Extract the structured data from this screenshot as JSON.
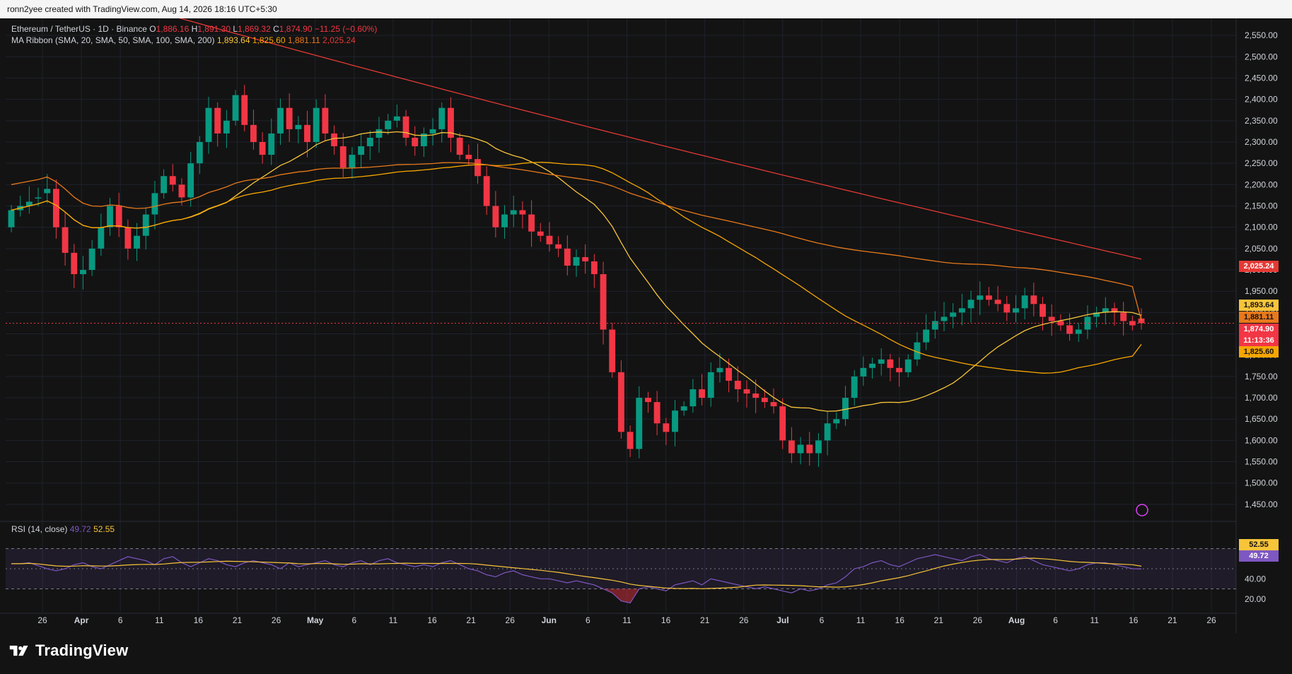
{
  "header": {
    "credit": "ronn2yee created with TradingView.com, Aug 14, 2026 18:16 UTC+5:30"
  },
  "legend": {
    "symbol": "Ethereum / TetherUS · 1D · Binance",
    "open_label": "O",
    "open": "1,886.16",
    "high_label": "H",
    "high": "1,891.30",
    "low_label": "L",
    "low": "1,869.32",
    "close_label": "C",
    "close": "1,874.90",
    "change": "−11.25 (−0.60%)",
    "ma_label": "MA Ribbon (SMA, 20, SMA, 50, SMA, 100, SMA, 200)",
    "ma20": "1,893.64",
    "ma50": "1,825.60",
    "ma100": "1,881.11",
    "ma200": "2,025.24",
    "rsi_label": "RSI (14, close)",
    "rsi_value": "49.72",
    "rsi_ma": "52.55"
  },
  "badges": {
    "ma200": "2,025.24",
    "ma20": "1,893.64",
    "ma100": "1,881.11",
    "last": "1,874.90",
    "countdown": "11:13:36",
    "ma50": "1,825.60",
    "rsi_ma": "52.55",
    "rsi": "49.72"
  },
  "colors": {
    "up": "#089981",
    "down": "#f23645",
    "ma20": "#f7c43a",
    "ma50": "#f7a600",
    "ma100": "#e8791b",
    "ma200": "#e53935",
    "rsi": "#7e57c2",
    "rsi_ma": "#f7c43a"
  },
  "brand": {
    "name": "TradingView",
    "logo": "tradingview-logo"
  },
  "chart_data": {
    "type": "candlestick",
    "title": "Ethereum / TetherUS · 1D · Binance",
    "ylim": [
      1420,
      2590
    ],
    "y_ticks": [
      "2,550.00",
      "2,500.00",
      "2,450.00",
      "2,400.00",
      "2,350.00",
      "2,300.00",
      "2,250.00",
      "2,200.00",
      "2,150.00",
      "2,100.00",
      "2,050.00",
      "2,000.00",
      "1,950.00",
      "1,900.00",
      "1,850.00",
      "1,800.00",
      "1,750.00",
      "1,700.00",
      "1,650.00",
      "1,600.00",
      "1,550.00",
      "1,500.00",
      "1,450.00"
    ],
    "x_ticks": [
      "26",
      "Apr",
      "6",
      "11",
      "16",
      "21",
      "26",
      "May",
      "6",
      "11",
      "16",
      "21",
      "26",
      "Jun",
      "6",
      "11",
      "16",
      "21",
      "26",
      "Jul",
      "6",
      "11",
      "16",
      "21",
      "26",
      "Aug",
      "6",
      "11",
      "16",
      "21",
      "26"
    ],
    "closes": [
      2140,
      2150,
      2160,
      2170,
      2190,
      2100,
      2040,
      1990,
      2000,
      2050,
      2100,
      2150,
      2100,
      2050,
      2080,
      2130,
      2180,
      2220,
      2200,
      2170,
      2250,
      2300,
      2380,
      2320,
      2350,
      2410,
      2340,
      2300,
      2270,
      2320,
      2380,
      2330,
      2340,
      2300,
      2380,
      2320,
      2290,
      2240,
      2270,
      2290,
      2310,
      2330,
      2350,
      2360,
      2310,
      2290,
      2320,
      2330,
      2380,
      2310,
      2270,
      2260,
      2220,
      2150,
      2100,
      2130,
      2140,
      2130,
      2090,
      2080,
      2060,
      2050,
      2010,
      2030,
      2020,
      1990,
      1860,
      1760,
      1620,
      1580,
      1700,
      1690,
      1640,
      1620,
      1670,
      1680,
      1720,
      1700,
      1760,
      1770,
      1740,
      1720,
      1710,
      1700,
      1690,
      1680,
      1600,
      1570,
      1590,
      1570,
      1600,
      1640,
      1650,
      1700,
      1750,
      1770,
      1780,
      1790,
      1770,
      1760,
      1790,
      1830,
      1860,
      1880,
      1890,
      1900,
      1910,
      1930,
      1940,
      1930,
      1920,
      1900,
      1910,
      1940,
      1920,
      1890,
      1880,
      1870,
      1850,
      1860,
      1890,
      1900,
      1910,
      1900,
      1880,
      1870,
      1875
    ],
    "opens": [
      2100,
      2140,
      2150,
      2170,
      2180,
      2190,
      2100,
      2040,
      1990,
      2000,
      2050,
      2100,
      2150,
      2100,
      2050,
      2080,
      2130,
      2180,
      2220,
      2200,
      2170,
      2250,
      2300,
      2380,
      2320,
      2350,
      2410,
      2340,
      2300,
      2270,
      2320,
      2380,
      2330,
      2340,
      2300,
      2380,
      2320,
      2290,
      2240,
      2270,
      2290,
      2310,
      2330,
      2350,
      2360,
      2310,
      2290,
      2320,
      2330,
      2380,
      2310,
      2270,
      2260,
      2220,
      2150,
      2100,
      2130,
      2140,
      2130,
      2090,
      2080,
      2060,
      2050,
      2010,
      2030,
      2020,
      1990,
      1860,
      1760,
      1620,
      1580,
      1700,
      1690,
      1640,
      1620,
      1670,
      1680,
      1720,
      1700,
      1760,
      1770,
      1740,
      1720,
      1710,
      1700,
      1690,
      1680,
      1600,
      1570,
      1590,
      1570,
      1600,
      1640,
      1650,
      1700,
      1750,
      1770,
      1780,
      1790,
      1770,
      1760,
      1790,
      1830,
      1860,
      1880,
      1890,
      1900,
      1910,
      1930,
      1940,
      1930,
      1920,
      1900,
      1910,
      1940,
      1920,
      1890,
      1880,
      1870,
      1850,
      1860,
      1890,
      1900,
      1910,
      1900,
      1880,
      1886
    ],
    "series": [
      {
        "name": "SMA 20",
        "last": 1893.64
      },
      {
        "name": "SMA 50",
        "last": 1825.6
      },
      {
        "name": "SMA 100",
        "last": 1881.11
      },
      {
        "name": "SMA 200",
        "last": 2025.24
      },
      {
        "name": "RSI (14, close)",
        "last": 49.72
      },
      {
        "name": "RSI MA",
        "last": 52.55
      }
    ],
    "rsi_ticks": [
      "40.00",
      "20.00"
    ],
    "rsi_closes": [
      55,
      55,
      56,
      53,
      50,
      48,
      50,
      54,
      56,
      52,
      50,
      54,
      58,
      62,
      60,
      58,
      54,
      60,
      62,
      56,
      52,
      56,
      60,
      58,
      54,
      52,
      56,
      58,
      56,
      54,
      50,
      56,
      52,
      54,
      56,
      58,
      54,
      52,
      56,
      58,
      54,
      58,
      60,
      56,
      54,
      52,
      54,
      52,
      56,
      58,
      54,
      50,
      48,
      44,
      42,
      46,
      48,
      44,
      42,
      40,
      40,
      38,
      36,
      38,
      36,
      34,
      30,
      26,
      18,
      16,
      30,
      32,
      30,
      28,
      34,
      36,
      38,
      34,
      40,
      38,
      36,
      34,
      32,
      30,
      32,
      30,
      28,
      26,
      30,
      28,
      30,
      34,
      36,
      42,
      50,
      52,
      56,
      58,
      54,
      52,
      56,
      60,
      62,
      64,
      62,
      60,
      58,
      62,
      64,
      60,
      58,
      56,
      60,
      62,
      58,
      54,
      52,
      50,
      48,
      50,
      54,
      56,
      56,
      54,
      52,
      50,
      49.72
    ]
  }
}
